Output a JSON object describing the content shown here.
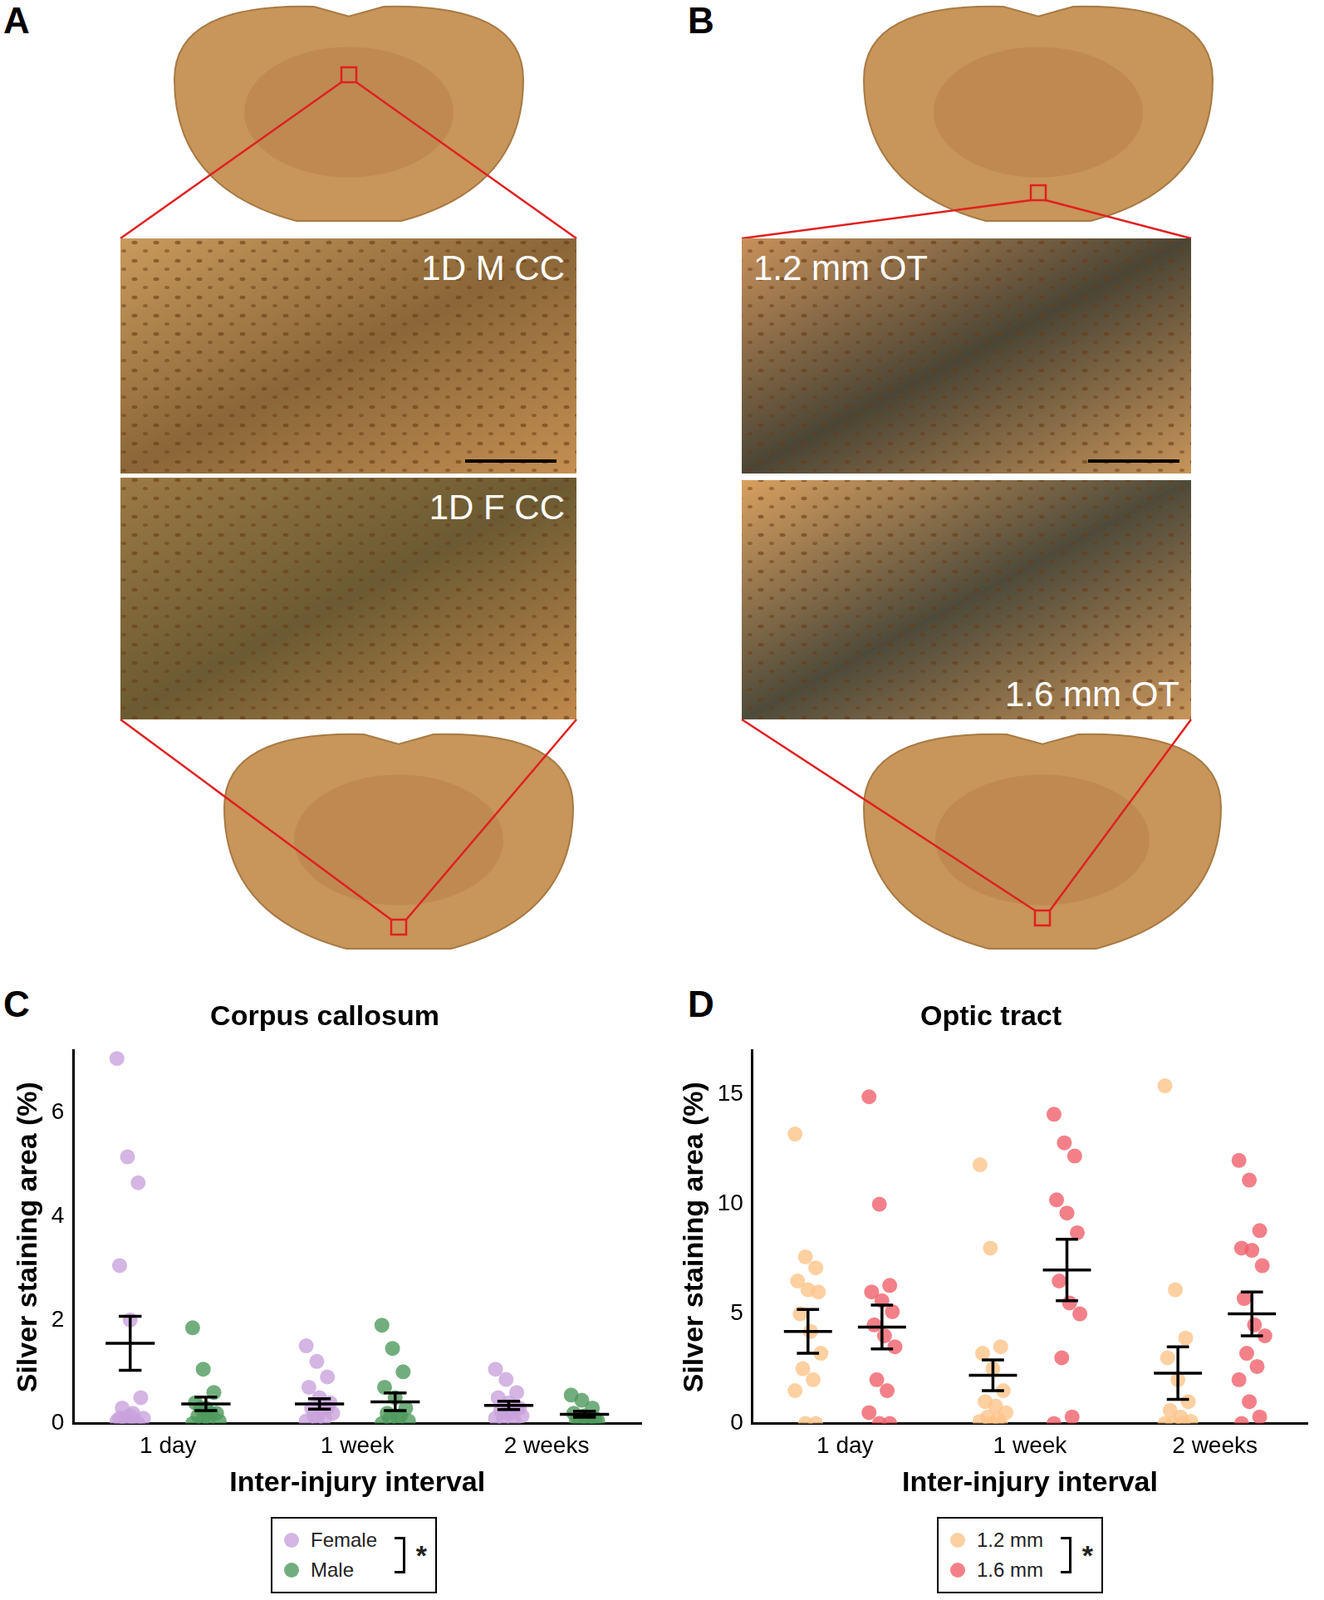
{
  "figure_panels": [
    {
      "label": "A",
      "insets": [
        "1D M CC",
        "1D F CC"
      ]
    },
    {
      "label": "B",
      "insets": [
        "1.2 mm OT",
        "1.6 mm OT"
      ]
    }
  ],
  "chart_data": [
    {
      "type": "scatter",
      "panel": "C",
      "title": "Corpus callosum",
      "x_label": "Inter-injury interval",
      "y_label": "Silver staining area (%)",
      "categories": [
        "1 day",
        "1 week",
        "2 weeks"
      ],
      "ylim": [
        0,
        7.2
      ],
      "yticks": [
        0,
        2,
        4,
        6
      ],
      "grid": false,
      "legend": "bottom",
      "significance": "*",
      "series": [
        {
          "name": "Female",
          "color": "#c9a3dc",
          "values": [
            [
              7.05,
              5.15,
              4.65,
              3.05,
              2.0,
              0.5,
              0.3,
              0.2,
              0.1,
              0.1,
              0.05,
              0.05,
              0.0,
              0.0,
              0.1,
              0.15
            ],
            [
              1.5,
              1.2,
              0.9,
              0.7,
              0.5,
              0.4,
              0.3,
              0.25,
              0.2,
              0.15,
              0.1,
              0.05,
              0.1,
              0.3
            ],
            [
              1.05,
              0.85,
              0.6,
              0.5,
              0.4,
              0.3,
              0.25,
              0.2,
              0.15,
              0.1,
              0.05,
              0.1,
              0.2,
              0.3
            ]
          ],
          "mean": [
            1.55,
            0.38,
            0.35
          ],
          "sem": [
            0.52,
            0.1,
            0.08
          ]
        },
        {
          "name": "Male",
          "color": "#4f9a5c",
          "values": [
            [
              1.85,
              1.05,
              0.6,
              0.4,
              0.3,
              0.2,
              0.15,
              0.1,
              0.05,
              0.3,
              0.2,
              0.0,
              0.1
            ],
            [
              1.9,
              1.45,
              1.0,
              0.7,
              0.5,
              0.3,
              0.2,
              0.1,
              0.05,
              0.1,
              0.15,
              0.0
            ],
            [
              0.55,
              0.45,
              0.3,
              0.2,
              0.15,
              0.1,
              0.05,
              0.1,
              0.05,
              0.0,
              0.1
            ]
          ],
          "mean": [
            0.38,
            0.42,
            0.18
          ],
          "sem": [
            0.13,
            0.17,
            0.06
          ]
        }
      ]
    },
    {
      "type": "scatter",
      "panel": "D",
      "title": "Optic tract",
      "x_label": "Inter-injury interval",
      "y_label": "Silver staining area (%)",
      "categories": [
        "1 day",
        "1 week",
        "2 weeks"
      ],
      "ylim": [
        0,
        17
      ],
      "yticks": [
        0,
        5,
        10,
        15
      ],
      "grid": false,
      "legend": "bottom",
      "significance": "*",
      "series": [
        {
          "name": "1.2 mm",
          "color": "#fcc48a",
          "values": [
            [
              13.2,
              7.6,
              7.1,
              6.5,
              6.1,
              6.0,
              5.0,
              4.2,
              3.2,
              2.5,
              2.0,
              1.5,
              0.0,
              0.0
            ],
            [
              11.8,
              8.0,
              3.5,
              3.2,
              2.5,
              1.5,
              1.0,
              0.8,
              0.5,
              0.3,
              0.2,
              0.1,
              0.0,
              0.0
            ],
            [
              15.4,
              6.1,
              3.9,
              3.0,
              2.0,
              1.0,
              0.6,
              0.3,
              0.1,
              0.0,
              0.0,
              0.0
            ]
          ],
          "mean": [
            4.2,
            2.2,
            2.3
          ],
          "sem": [
            1.0,
            0.7,
            1.2
          ]
        },
        {
          "name": "1.6 mm",
          "color": "#f0606a",
          "values": [
            [
              14.9,
              10.0,
              6.3,
              6.0,
              5.6,
              5.1,
              4.5,
              4.0,
              3.5,
              2.0,
              1.5,
              0.5,
              0.0,
              0.0
            ],
            [
              14.1,
              12.8,
              12.2,
              10.2,
              9.6,
              8.7,
              6.5,
              5.5,
              5.0,
              3.0,
              0.3,
              0.0
            ],
            [
              12.0,
              11.1,
              8.8,
              8.0,
              7.9,
              7.2,
              5.7,
              4.5,
              4.0,
              3.2,
              2.6,
              2.0,
              1.0,
              0.3,
              0.0
            ]
          ],
          "mean": [
            4.4,
            7.0,
            5.0
          ],
          "sem": [
            1.0,
            1.4,
            1.0
          ]
        }
      ]
    }
  ]
}
